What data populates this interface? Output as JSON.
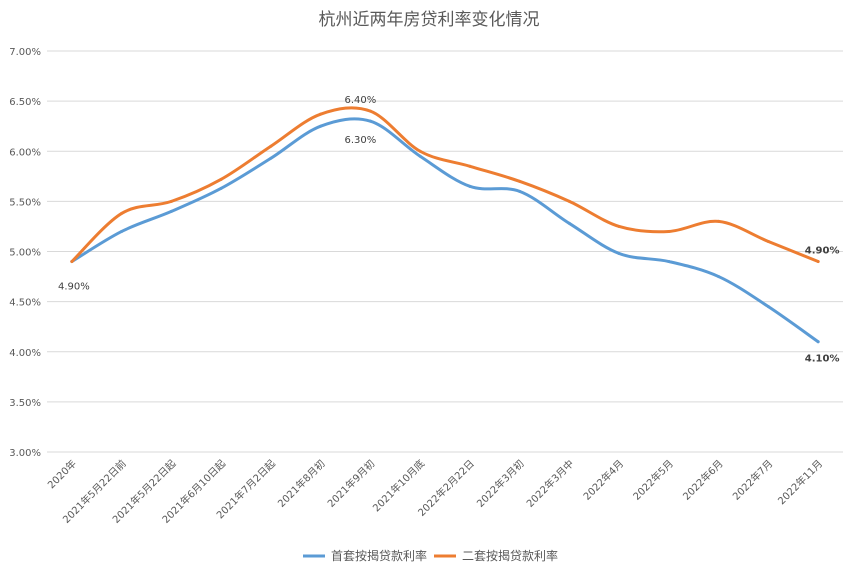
{
  "colors": {
    "series1": "#5b9bd5",
    "series2": "#ed7d31",
    "grid": "#d9d9d9",
    "text": "#595959"
  },
  "chart_data": {
    "type": "line",
    "title": "杭州近两年房贷利率变化情况",
    "xlabel": "",
    "ylabel": "",
    "ylim": [
      3.0,
      7.0
    ],
    "y_ticks": [
      "3.00%",
      "3.50%",
      "4.00%",
      "4.50%",
      "5.00%",
      "5.50%",
      "6.00%",
      "6.50%",
      "7.00%"
    ],
    "y_tick_values": [
      3.0,
      3.5,
      4.0,
      4.5,
      5.0,
      5.5,
      6.0,
      6.5,
      7.0
    ],
    "grid": true,
    "legend": "bottom",
    "categories": [
      "2020年",
      "2021年5月22日前",
      "2021年5月22日起",
      "2021年6月10日起",
      "2021年7月2日起",
      "2021年8月初",
      "2021年9月初",
      "2021年10月底",
      "2022年2月22日",
      "2022年3月初",
      "2022年3月中",
      "2022年4月",
      "2022年5月",
      "2022年6月",
      "2022年7月",
      "2022年11月"
    ],
    "series": [
      {
        "name": "首套按揭贷款利率",
        "values": [
          4.9,
          5.2,
          5.4,
          5.63,
          5.93,
          6.25,
          6.3,
          5.95,
          5.65,
          5.6,
          5.28,
          4.98,
          4.9,
          4.75,
          4.45,
          4.1
        ]
      },
      {
        "name": "二套按揭贷款利率",
        "values": [
          4.9,
          5.38,
          5.5,
          5.72,
          6.05,
          6.37,
          6.4,
          6.0,
          5.85,
          5.7,
          5.5,
          5.25,
          5.2,
          5.3,
          5.1,
          4.9
        ]
      }
    ],
    "data_labels": [
      {
        "series": 0,
        "index": 0,
        "text": "4.90%",
        "bold": false
      },
      {
        "series": 1,
        "index": 6,
        "text": "6.40%",
        "bold": false
      },
      {
        "series": 0,
        "index": 6,
        "text": "6.30%",
        "bold": false
      },
      {
        "series": 1,
        "index": 15,
        "text": "4.90%",
        "bold": true
      },
      {
        "series": 0,
        "index": 15,
        "text": "4.10%",
        "bold": true
      }
    ]
  }
}
